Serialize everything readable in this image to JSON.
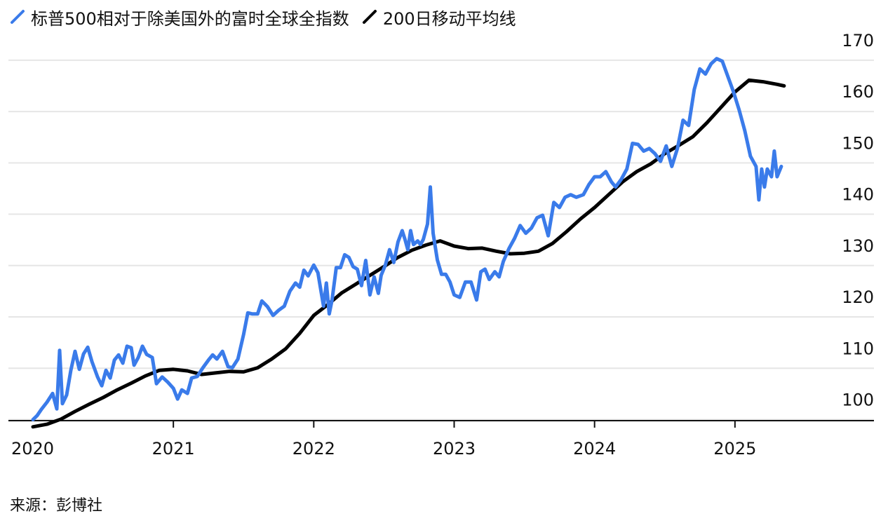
{
  "chart_data": {
    "type": "line",
    "legend": {
      "position": "top-left",
      "entries": [
        {
          "label": "标普500相对于除美国外的富时全球全指数",
          "color": "#3a7bea"
        },
        {
          "label": "200日移动平均线",
          "color": "#000000"
        }
      ]
    },
    "x_tick_labels": [
      "2020",
      "2021",
      "2022",
      "2023",
      "2024",
      "2025"
    ],
    "y_tick_labels": [
      "170",
      "160",
      "150",
      "140",
      "130",
      "120",
      "110",
      "100"
    ],
    "ylim": [
      96,
      170
    ],
    "xlim": [
      2020.0,
      2026.0
    ],
    "grid": "horizontal",
    "y_axis_side": "right",
    "series": [
      {
        "name": "标普500相对于除美国外的富时全球全指数",
        "color": "#3a7bea",
        "points": [
          [
            2020.0,
            96.2
          ],
          [
            2020.03,
            97.0
          ],
          [
            2020.06,
            98.2
          ],
          [
            2020.1,
            99.6
          ],
          [
            2020.14,
            101.3
          ],
          [
            2020.17,
            98.3
          ],
          [
            2020.19,
            109.7
          ],
          [
            2020.21,
            99.3
          ],
          [
            2020.24,
            101.0
          ],
          [
            2020.27,
            105.8
          ],
          [
            2020.3,
            109.5
          ],
          [
            2020.33,
            106.0
          ],
          [
            2020.36,
            109.0
          ],
          [
            2020.39,
            110.3
          ],
          [
            2020.42,
            107.5
          ],
          [
            2020.46,
            104.5
          ],
          [
            2020.49,
            102.8
          ],
          [
            2020.52,
            105.8
          ],
          [
            2020.55,
            104.3
          ],
          [
            2020.58,
            107.8
          ],
          [
            2020.61,
            108.8
          ],
          [
            2020.64,
            107.2
          ],
          [
            2020.67,
            110.5
          ],
          [
            2020.7,
            110.2
          ],
          [
            2020.72,
            106.8
          ],
          [
            2020.75,
            108.3
          ],
          [
            2020.78,
            110.5
          ],
          [
            2020.81,
            108.9
          ],
          [
            2020.85,
            108.3
          ],
          [
            2020.88,
            103.2
          ],
          [
            2020.92,
            104.5
          ],
          [
            2020.96,
            103.5
          ],
          [
            2021.0,
            102.3
          ],
          [
            2021.03,
            100.2
          ],
          [
            2021.06,
            102.0
          ],
          [
            2021.1,
            101.3
          ],
          [
            2021.13,
            104.3
          ],
          [
            2021.17,
            104.6
          ],
          [
            2021.21,
            106.3
          ],
          [
            2021.25,
            107.8
          ],
          [
            2021.28,
            108.8
          ],
          [
            2021.31,
            108.0
          ],
          [
            2021.35,
            109.5
          ],
          [
            2021.39,
            106.5
          ],
          [
            2021.42,
            106.3
          ],
          [
            2021.46,
            108.0
          ],
          [
            2021.5,
            112.8
          ],
          [
            2021.53,
            117.0
          ],
          [
            2021.56,
            116.8
          ],
          [
            2021.6,
            116.8
          ],
          [
            2021.63,
            119.3
          ],
          [
            2021.67,
            118.2
          ],
          [
            2021.71,
            116.5
          ],
          [
            2021.75,
            117.5
          ],
          [
            2021.79,
            118.3
          ],
          [
            2021.83,
            121.2
          ],
          [
            2021.87,
            122.8
          ],
          [
            2021.9,
            122.0
          ],
          [
            2021.93,
            125.3
          ],
          [
            2021.96,
            124.2
          ],
          [
            2022.0,
            126.3
          ],
          [
            2022.03,
            124.8
          ],
          [
            2022.05,
            121.5
          ],
          [
            2022.07,
            118.3
          ],
          [
            2022.09,
            122.8
          ],
          [
            2022.11,
            116.8
          ],
          [
            2022.13,
            119.5
          ],
          [
            2022.16,
            125.8
          ],
          [
            2022.19,
            125.8
          ],
          [
            2022.22,
            128.3
          ],
          [
            2022.25,
            127.8
          ],
          [
            2022.28,
            126.0
          ],
          [
            2022.31,
            125.5
          ],
          [
            2022.34,
            122.3
          ],
          [
            2022.37,
            127.2
          ],
          [
            2022.4,
            120.5
          ],
          [
            2022.43,
            124.0
          ],
          [
            2022.46,
            120.8
          ],
          [
            2022.48,
            124.3
          ],
          [
            2022.51,
            126.3
          ],
          [
            2022.54,
            129.3
          ],
          [
            2022.57,
            126.8
          ],
          [
            2022.6,
            130.8
          ],
          [
            2022.63,
            133.0
          ],
          [
            2022.65,
            131.3
          ],
          [
            2022.67,
            129.3
          ],
          [
            2022.69,
            133.0
          ],
          [
            2022.71,
            130.3
          ],
          [
            2022.74,
            131.0
          ],
          [
            2022.76,
            130.3
          ],
          [
            2022.78,
            131.3
          ],
          [
            2022.81,
            134.3
          ],
          [
            2022.83,
            141.5
          ],
          [
            2022.85,
            132.5
          ],
          [
            2022.88,
            127.3
          ],
          [
            2022.91,
            124.5
          ],
          [
            2022.94,
            124.5
          ],
          [
            2022.97,
            123.0
          ],
          [
            2023.0,
            120.5
          ],
          [
            2023.04,
            120.0
          ],
          [
            2023.08,
            123.0
          ],
          [
            2023.12,
            123.0
          ],
          [
            2023.16,
            119.5
          ],
          [
            2023.19,
            125.0
          ],
          [
            2023.22,
            125.5
          ],
          [
            2023.25,
            123.5
          ],
          [
            2023.29,
            125.0
          ],
          [
            2023.32,
            124.0
          ],
          [
            2023.35,
            127.0
          ],
          [
            2023.39,
            129.5
          ],
          [
            2023.43,
            131.5
          ],
          [
            2023.47,
            134.0
          ],
          [
            2023.51,
            132.5
          ],
          [
            2023.55,
            133.5
          ],
          [
            2023.59,
            135.5
          ],
          [
            2023.63,
            136.0
          ],
          [
            2023.67,
            132.0
          ],
          [
            2023.71,
            138.5
          ],
          [
            2023.75,
            137.5
          ],
          [
            2023.79,
            139.5
          ],
          [
            2023.83,
            140.0
          ],
          [
            2023.87,
            139.5
          ],
          [
            2023.92,
            140.0
          ],
          [
            2023.96,
            142.0
          ],
          [
            2024.0,
            143.5
          ],
          [
            2024.04,
            143.5
          ],
          [
            2024.08,
            144.5
          ],
          [
            2024.12,
            142.5
          ],
          [
            2024.15,
            141.5
          ],
          [
            2024.19,
            143.0
          ],
          [
            2024.23,
            145.0
          ],
          [
            2024.27,
            150.0
          ],
          [
            2024.31,
            149.8
          ],
          [
            2024.35,
            148.5
          ],
          [
            2024.39,
            149.0
          ],
          [
            2024.43,
            148.0
          ],
          [
            2024.47,
            146.5
          ],
          [
            2024.51,
            149.5
          ],
          [
            2024.55,
            145.5
          ],
          [
            2024.59,
            149.0
          ],
          [
            2024.63,
            154.5
          ],
          [
            2024.67,
            153.5
          ],
          [
            2024.71,
            160.5
          ],
          [
            2024.75,
            164.5
          ],
          [
            2024.79,
            163.5
          ],
          [
            2024.83,
            165.5
          ],
          [
            2024.87,
            166.5
          ],
          [
            2024.91,
            166.0
          ],
          [
            2024.95,
            163.0
          ],
          [
            2024.99,
            160.0
          ],
          [
            2025.03,
            156.5
          ],
          [
            2025.07,
            152.5
          ],
          [
            2025.11,
            147.5
          ],
          [
            2025.15,
            145.5
          ],
          [
            2025.17,
            139.0
          ],
          [
            2025.19,
            145.0
          ],
          [
            2025.21,
            141.5
          ],
          [
            2025.23,
            145.0
          ],
          [
            2025.26,
            143.5
          ],
          [
            2025.28,
            148.5
          ],
          [
            2025.3,
            143.5
          ],
          [
            2025.33,
            145.5
          ]
        ]
      },
      {
        "name": "200日移动平均线",
        "color": "#000000",
        "points": [
          [
            2020.0,
            94.8
          ],
          [
            2020.1,
            95.3
          ],
          [
            2020.2,
            96.3
          ],
          [
            2020.3,
            97.8
          ],
          [
            2020.4,
            99.2
          ],
          [
            2020.5,
            100.5
          ],
          [
            2020.6,
            102.0
          ],
          [
            2020.7,
            103.3
          ],
          [
            2020.8,
            104.7
          ],
          [
            2020.9,
            105.8
          ],
          [
            2021.0,
            106.0
          ],
          [
            2021.1,
            105.7
          ],
          [
            2021.2,
            105.0
          ],
          [
            2021.3,
            105.3
          ],
          [
            2021.4,
            105.6
          ],
          [
            2021.5,
            105.5
          ],
          [
            2021.6,
            106.3
          ],
          [
            2021.7,
            108.0
          ],
          [
            2021.8,
            110.0
          ],
          [
            2021.9,
            113.0
          ],
          [
            2022.0,
            116.5
          ],
          [
            2022.1,
            118.6
          ],
          [
            2022.2,
            120.9
          ],
          [
            2022.3,
            122.6
          ],
          [
            2022.4,
            124.3
          ],
          [
            2022.5,
            126.0
          ],
          [
            2022.6,
            127.8
          ],
          [
            2022.7,
            129.2
          ],
          [
            2022.8,
            130.2
          ],
          [
            2022.9,
            131.0
          ],
          [
            2023.0,
            130.0
          ],
          [
            2023.1,
            129.5
          ],
          [
            2023.2,
            129.6
          ],
          [
            2023.3,
            129.0
          ],
          [
            2023.4,
            128.5
          ],
          [
            2023.5,
            128.6
          ],
          [
            2023.6,
            129.0
          ],
          [
            2023.7,
            130.5
          ],
          [
            2023.8,
            132.8
          ],
          [
            2023.9,
            135.3
          ],
          [
            2024.0,
            137.5
          ],
          [
            2024.1,
            140.0
          ],
          [
            2024.2,
            142.5
          ],
          [
            2024.3,
            144.5
          ],
          [
            2024.4,
            146.0
          ],
          [
            2024.5,
            148.0
          ],
          [
            2024.6,
            149.6
          ],
          [
            2024.7,
            151.3
          ],
          [
            2024.8,
            154.0
          ],
          [
            2024.9,
            157.0
          ],
          [
            2025.0,
            160.0
          ],
          [
            2025.1,
            162.3
          ],
          [
            2025.2,
            162.0
          ],
          [
            2025.3,
            161.5
          ],
          [
            2025.35,
            161.2
          ]
        ]
      }
    ],
    "source": "来源：彭博社"
  }
}
